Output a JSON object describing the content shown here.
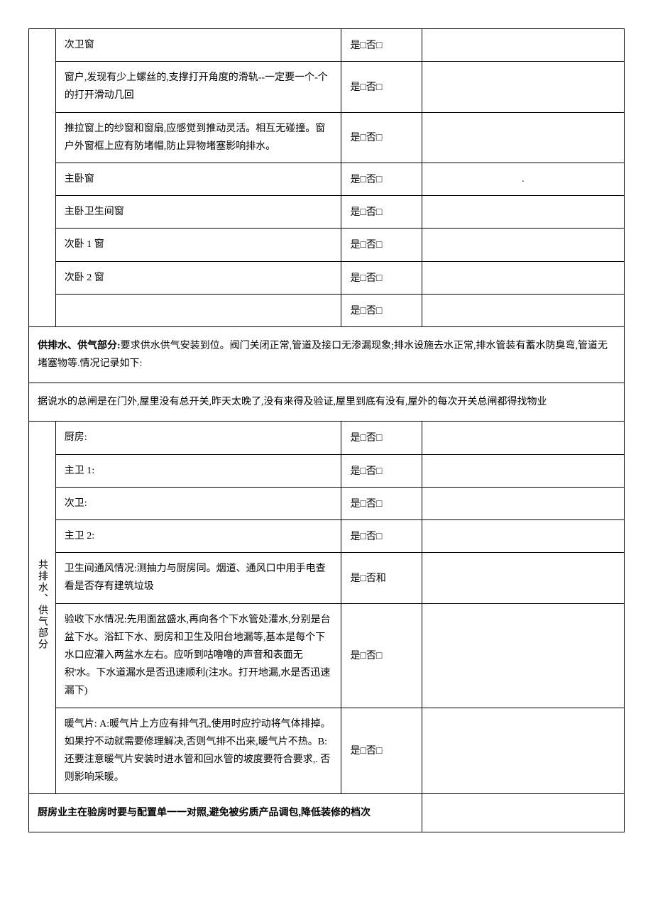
{
  "colors": {
    "border": "#000000",
    "text": "#000000",
    "background": "#ffffff"
  },
  "typography": {
    "font_family": "SimSun",
    "font_size_pt": 10.5,
    "line_height": 1.8
  },
  "layout": {
    "widths": {
      "label_col_pct": 4.5,
      "desc_col_pct": 48,
      "check_col_pct": 13.5,
      "note_col_pct": 34
    }
  },
  "checkbox": {
    "yes": "是□否□",
    "yes_alt": "是□否和"
  },
  "section1": {
    "rows": [
      {
        "desc": "次卫窗",
        "check": "是□否□",
        "note": ""
      },
      {
        "desc": "窗户,发现有少上螺丝的,支撑打开角度的滑轨--一定要一个-个的打开滑动几回",
        "check": "是□否□",
        "note": ""
      },
      {
        "desc": "推拉窗上的纱窗和窗扇,应感觉到推动灵活。相互无碰撞。窗户外窗框上应有防堵帽,防止异物堵塞影响排水。",
        "check": "是□否□",
        "note": ""
      },
      {
        "desc": "主卧窗",
        "check": "是□否□",
        "note": "."
      },
      {
        "desc": "主卧卫生间窗",
        "check": "是□否□",
        "note": ""
      },
      {
        "desc": "次卧 1 窗",
        "check": "是□否□",
        "note": ""
      },
      {
        "desc": "次卧 2 窗",
        "check": "是□否□",
        "note": ""
      },
      {
        "desc": "",
        "check": "是□否□",
        "note": ""
      }
    ]
  },
  "section2": {
    "header_bold": "供排水、供气部分:",
    "header_rest": "要求供水供气安装到位。阀门关闭正常,管道及接口无渗漏现象;排水设施去水正常,排水管装有蓄水防臭弯,管道无堵塞物等.情况记录如下:",
    "subnote": "据说水的总闸是在门外,屋里没有总开关,昨天太晚了,没有来得及验证,屋里到底有没有,屋外的每次开关总闸都得找物业"
  },
  "section3": {
    "label": "共排水、供气部分",
    "rows": [
      {
        "desc": "厨房:",
        "check": "是□否□"
      },
      {
        "desc": "主卫 1:",
        "check": "是□否□"
      },
      {
        "desc": "次卫:",
        "check": "是□否□"
      },
      {
        "desc": "主卫 2:",
        "check": "是□否□"
      },
      {
        "desc": "卫生间通风情况:测抽力与厨房同。烟道、通风口中用手电查看是否存有建筑垃圾",
        "check": "是□否和"
      },
      {
        "desc": "验收下水情况:先用面盆盛水,再向各个下水管处灌水,分别是台盆下水。浴缸下水、厨房和卫生及阳台地漏等,基本是每个下水口应灌入两盆水左右。应听到咕噜噜的声音和表面无积'水。下水道漏水是否迅速顺利(注水。打开地漏,水是否迅速漏下)",
        "check": "是□否□"
      },
      {
        "desc": "暖气片: A:暖气片上方应有排气孔,使用时应拧动将气体排掉。如果拧不动就需要修理解决,否则气排不出来,暖气片不热。B:还要注意暖气片安装时进水管和回水管的坡度要符合要求,. 否则影响采暖。",
        "check": "是□否□"
      }
    ]
  },
  "section4": {
    "header": "厨房业主在验房时要与配置单一一对照,避免被劣质产品调包,降低装修的档次"
  }
}
